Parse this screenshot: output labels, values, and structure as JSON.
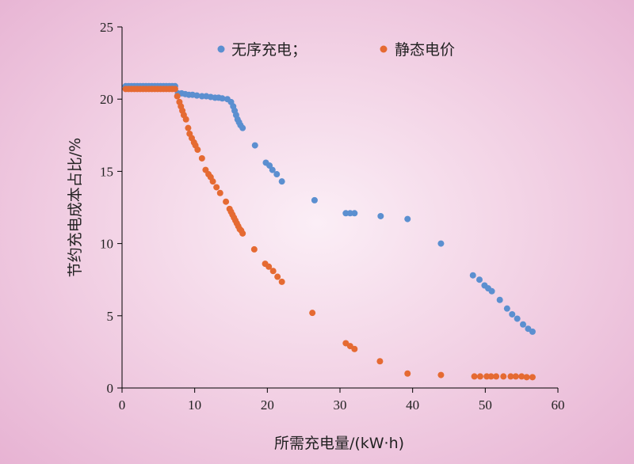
{
  "chart_data": {
    "type": "scatter",
    "title": "",
    "xlabel": "所需充电量/(kW·h)",
    "ylabel": "节约充电成本占比/%",
    "xlim": [
      0,
      60
    ],
    "ylim": [
      0,
      25
    ],
    "xticks": [
      0,
      10,
      20,
      30,
      40,
      50,
      60
    ],
    "yticks": [
      0,
      5,
      10,
      15,
      20,
      25
    ],
    "grid": false,
    "legend_position": "top",
    "series": [
      {
        "name": "无序充电；",
        "color": "#5b8fd0",
        "points": [
          [
            0.5,
            20.9
          ],
          [
            0.9,
            20.9
          ],
          [
            1.3,
            20.9
          ],
          [
            1.7,
            20.9
          ],
          [
            2.1,
            20.9
          ],
          [
            2.5,
            20.9
          ],
          [
            2.9,
            20.9
          ],
          [
            3.3,
            20.9
          ],
          [
            3.7,
            20.9
          ],
          [
            4.1,
            20.9
          ],
          [
            4.5,
            20.9
          ],
          [
            4.9,
            20.9
          ],
          [
            5.3,
            20.9
          ],
          [
            5.7,
            20.9
          ],
          [
            6.1,
            20.9
          ],
          [
            6.5,
            20.9
          ],
          [
            6.9,
            20.9
          ],
          [
            7.3,
            20.9
          ],
          [
            7.7,
            20.4
          ],
          [
            8.2,
            20.4
          ],
          [
            8.7,
            20.35
          ],
          [
            9.2,
            20.3
          ],
          [
            9.7,
            20.3
          ],
          [
            10.3,
            20.25
          ],
          [
            11.0,
            20.2
          ],
          [
            11.6,
            20.2
          ],
          [
            12.2,
            20.15
          ],
          [
            12.8,
            20.1
          ],
          [
            13.3,
            20.1
          ],
          [
            13.8,
            20.05
          ],
          [
            14.5,
            20.0
          ],
          [
            15.0,
            19.8
          ],
          [
            15.3,
            19.5
          ],
          [
            15.5,
            19.2
          ],
          [
            15.7,
            18.9
          ],
          [
            15.9,
            18.6
          ],
          [
            16.1,
            18.4
          ],
          [
            16.3,
            18.2
          ],
          [
            16.6,
            18.0
          ],
          [
            18.3,
            16.8
          ],
          [
            19.8,
            15.6
          ],
          [
            20.3,
            15.4
          ],
          [
            20.7,
            15.1
          ],
          [
            21.3,
            14.8
          ],
          [
            22.0,
            14.3
          ],
          [
            26.5,
            13.0
          ],
          [
            30.8,
            12.1
          ],
          [
            31.4,
            12.1
          ],
          [
            32.0,
            12.1
          ],
          [
            35.6,
            11.9
          ],
          [
            39.3,
            11.7
          ],
          [
            43.9,
            10.0
          ],
          [
            48.3,
            7.8
          ],
          [
            49.2,
            7.5
          ],
          [
            49.9,
            7.1
          ],
          [
            50.4,
            6.9
          ],
          [
            50.9,
            6.7
          ],
          [
            52.0,
            6.1
          ],
          [
            53.0,
            5.5
          ],
          [
            53.7,
            5.1
          ],
          [
            54.4,
            4.8
          ],
          [
            55.2,
            4.4
          ],
          [
            55.9,
            4.1
          ],
          [
            56.5,
            3.9
          ]
        ]
      },
      {
        "name": "静态电价",
        "color": "#e56a32",
        "points": [
          [
            0.5,
            20.7
          ],
          [
            0.9,
            20.7
          ],
          [
            1.3,
            20.7
          ],
          [
            1.7,
            20.7
          ],
          [
            2.1,
            20.7
          ],
          [
            2.5,
            20.7
          ],
          [
            2.9,
            20.7
          ],
          [
            3.3,
            20.7
          ],
          [
            3.7,
            20.7
          ],
          [
            4.1,
            20.7
          ],
          [
            4.5,
            20.7
          ],
          [
            4.9,
            20.7
          ],
          [
            5.3,
            20.7
          ],
          [
            5.7,
            20.7
          ],
          [
            6.1,
            20.7
          ],
          [
            6.5,
            20.7
          ],
          [
            6.9,
            20.7
          ],
          [
            7.3,
            20.7
          ],
          [
            7.6,
            20.2
          ],
          [
            7.9,
            19.8
          ],
          [
            8.1,
            19.5
          ],
          [
            8.3,
            19.2
          ],
          [
            8.5,
            18.9
          ],
          [
            8.8,
            18.6
          ],
          [
            9.1,
            18.0
          ],
          [
            9.3,
            17.6
          ],
          [
            9.6,
            17.3
          ],
          [
            9.9,
            17.0
          ],
          [
            10.1,
            16.8
          ],
          [
            10.4,
            16.5
          ],
          [
            11.0,
            15.9
          ],
          [
            11.5,
            15.1
          ],
          [
            11.9,
            14.8
          ],
          [
            12.2,
            14.6
          ],
          [
            12.5,
            14.3
          ],
          [
            13.0,
            13.9
          ],
          [
            13.5,
            13.5
          ],
          [
            14.3,
            12.9
          ],
          [
            14.8,
            12.4
          ],
          [
            15.0,
            12.2
          ],
          [
            15.2,
            12.0
          ],
          [
            15.4,
            11.8
          ],
          [
            15.6,
            11.6
          ],
          [
            15.8,
            11.4
          ],
          [
            16.0,
            11.2
          ],
          [
            16.2,
            11.0
          ],
          [
            16.4,
            10.9
          ],
          [
            16.6,
            10.7
          ],
          [
            18.2,
            9.6
          ],
          [
            19.7,
            8.6
          ],
          [
            20.2,
            8.4
          ],
          [
            20.8,
            8.1
          ],
          [
            21.4,
            7.7
          ],
          [
            22.0,
            7.35
          ],
          [
            26.2,
            5.2
          ],
          [
            30.8,
            3.1
          ],
          [
            31.4,
            2.9
          ],
          [
            32.0,
            2.7
          ],
          [
            35.5,
            1.85
          ],
          [
            39.3,
            1.0
          ],
          [
            43.9,
            0.9
          ],
          [
            48.5,
            0.8
          ],
          [
            49.3,
            0.8
          ],
          [
            50.2,
            0.8
          ],
          [
            50.8,
            0.8
          ],
          [
            51.5,
            0.8
          ],
          [
            52.5,
            0.8
          ],
          [
            53.5,
            0.8
          ],
          [
            54.2,
            0.8
          ],
          [
            55.0,
            0.8
          ],
          [
            55.7,
            0.75
          ],
          [
            56.5,
            0.75
          ]
        ]
      }
    ]
  }
}
